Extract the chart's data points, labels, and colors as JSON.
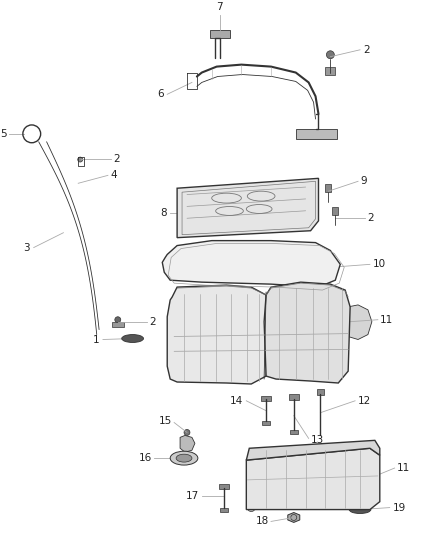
{
  "bg_color": "#ffffff",
  "line_color": "#333333",
  "gray": "#888888",
  "light_gray": "#cccccc",
  "fig_width": 4.38,
  "fig_height": 5.33,
  "dpi": 100
}
